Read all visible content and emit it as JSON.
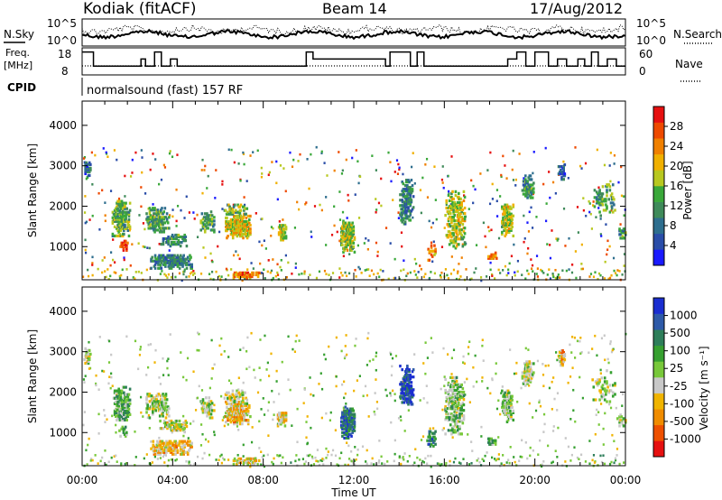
{
  "header": {
    "station": "Kodiak (fitACF)",
    "beam": "Beam 14",
    "date": "17/Aug/2012"
  },
  "top_panels": {
    "nsky_label": "N.Sky",
    "nsearch_label": "N.Search",
    "freq_label_1": "Freq.",
    "freq_label_2": "[MHz]",
    "nave_label": "Nave",
    "cpid_label": "CPID",
    "cpid_text": "normalsound (fast) 157 RF",
    "noise_ticks_left": [
      "10^5",
      "10^0"
    ],
    "noise_ticks_right": [
      "10^5",
      "10^0"
    ],
    "freq_ticks": [
      "18",
      "8"
    ],
    "nave_ticks": [
      "60",
      "0"
    ],
    "freq_steps": [
      {
        "t": 0.0,
        "f": 17
      },
      {
        "t": 0.5,
        "f": 11
      },
      {
        "t": 2.6,
        "f": 14
      },
      {
        "t": 2.8,
        "f": 11
      },
      {
        "t": 3.2,
        "f": 17
      },
      {
        "t": 3.5,
        "f": 11
      },
      {
        "t": 3.9,
        "f": 14
      },
      {
        "t": 4.2,
        "f": 11
      },
      {
        "t": 6.6,
        "f": 11
      },
      {
        "t": 6.7,
        "f": 11
      },
      {
        "t": 8.5,
        "f": 11
      },
      {
        "t": 9.9,
        "f": 17
      },
      {
        "t": 10.2,
        "f": 14
      },
      {
        "t": 12.0,
        "f": 14
      },
      {
        "t": 13.4,
        "f": 11
      },
      {
        "t": 13.6,
        "f": 17
      },
      {
        "t": 14.2,
        "f": 17
      },
      {
        "t": 14.5,
        "f": 11
      },
      {
        "t": 14.8,
        "f": 17
      },
      {
        "t": 15.1,
        "f": 11
      },
      {
        "t": 18.8,
        "f": 14
      },
      {
        "t": 19.2,
        "f": 17
      },
      {
        "t": 19.6,
        "f": 11
      },
      {
        "t": 20.0,
        "f": 17
      },
      {
        "t": 20.6,
        "f": 11
      },
      {
        "t": 21.0,
        "f": 14
      },
      {
        "t": 21.4,
        "f": 11
      },
      {
        "t": 21.9,
        "f": 14
      },
      {
        "t": 22.2,
        "f": 11
      },
      {
        "t": 22.5,
        "f": 17
      },
      {
        "t": 22.8,
        "f": 11
      },
      {
        "t": 23.2,
        "f": 14
      },
      {
        "t": 23.6,
        "f": 11
      },
      {
        "t": 24.0,
        "f": 11
      }
    ]
  },
  "chart_data": {
    "type": "heatmap",
    "x_axis": {
      "label": "Time UT",
      "range": [
        0,
        24
      ],
      "unit": "hours",
      "ticks": [
        "00:00",
        "04:00",
        "08:00",
        "12:00",
        "16:00",
        "20:00",
        "00:00"
      ]
    },
    "panels": [
      {
        "name": "power",
        "ylabel": "Slant Range [km]",
        "ylim": [
          180,
          4600
        ],
        "yticks": [
          1000,
          2000,
          3000,
          4000
        ],
        "colorbar": {
          "label": "Power [dB]",
          "ticks": [
            "28",
            "24",
            "20",
            "16",
            "12",
            "8",
            "4"
          ],
          "colors": [
            "#1a1aff",
            "#2a4da8",
            "#2e6e8e",
            "#3f8a5a",
            "#3aa83a",
            "#b8c820",
            "#f0b000",
            "#f08000",
            "#ee4a00",
            "#e61010"
          ]
        }
      },
      {
        "name": "velocity",
        "ylabel": "Slant Range [km]",
        "ylim": [
          180,
          4600
        ],
        "yticks": [
          1000,
          2000,
          3000,
          4000
        ],
        "colorbar": {
          "label": "Velocity [m s⁻¹]",
          "ticks": [
            "1000",
            "500",
            "100",
            "25",
            "-25",
            "-100",
            "-500",
            "-1000"
          ],
          "colors": [
            "#1a2ed0",
            "#2e5aa8",
            "#2e7e5a",
            "#36a030",
            "#78c83a",
            "#c8c8c8",
            "#f0b400",
            "#f08c00",
            "#ee5000",
            "#e61010"
          ]
        }
      }
    ],
    "scatter_regions": [
      {
        "t0": 0.05,
        "t1": 0.35,
        "r0": 2750,
        "r1": 3150,
        "p": 0.9,
        "pw": 0.25,
        "vel": 0.45
      },
      {
        "t0": 1.3,
        "t1": 2.1,
        "r0": 1300,
        "r1": 2200,
        "p": 0.75,
        "pw": 0.45,
        "vel": 0.62
      },
      {
        "t0": 1.6,
        "t1": 2.0,
        "r0": 900,
        "r1": 1200,
        "p": 0.5,
        "pw": 0.9,
        "vel": 0.55
      },
      {
        "t0": 2.8,
        "t1": 3.8,
        "r0": 1400,
        "r1": 2000,
        "p": 0.6,
        "pw": 0.4,
        "vel": 0.5
      },
      {
        "t0": 3.0,
        "t1": 4.8,
        "r0": 500,
        "r1": 850,
        "p": 0.75,
        "pw": 0.3,
        "vel": 0.35
      },
      {
        "t0": 3.4,
        "t1": 4.6,
        "r0": 1050,
        "r1": 1350,
        "p": 0.6,
        "pw": 0.35,
        "vel": 0.45
      },
      {
        "t0": 5.2,
        "t1": 5.8,
        "r0": 1400,
        "r1": 1900,
        "p": 0.55,
        "pw": 0.4,
        "vel": 0.5
      },
      {
        "t0": 6.3,
        "t1": 7.4,
        "r0": 1250,
        "r1": 1800,
        "p": 0.95,
        "pw": 0.6,
        "vel": 0.35
      },
      {
        "t0": 6.2,
        "t1": 7.3,
        "r0": 1750,
        "r1": 2100,
        "p": 0.5,
        "pw": 0.45,
        "vel": 0.5
      },
      {
        "t0": 6.6,
        "t1": 7.8,
        "r0": 250,
        "r1": 420,
        "p": 0.7,
        "pw": 0.75,
        "vel": 0.4
      },
      {
        "t0": 8.6,
        "t1": 9.0,
        "r0": 1200,
        "r1": 1600,
        "p": 0.85,
        "pw": 0.55,
        "vel": 0.38
      },
      {
        "t0": 11.4,
        "t1": 12.0,
        "r0": 900,
        "r1": 1700,
        "p": 0.9,
        "pw": 0.55,
        "vel": 0.8
      },
      {
        "t0": 14.0,
        "t1": 14.6,
        "r0": 1600,
        "r1": 2700,
        "p": 0.6,
        "pw": 0.3,
        "vel": 0.9
      },
      {
        "t0": 15.2,
        "t1": 15.6,
        "r0": 700,
        "r1": 1100,
        "p": 0.5,
        "pw": 0.7,
        "vel": 0.75
      },
      {
        "t0": 16.0,
        "t1": 16.9,
        "r0": 1000,
        "r1": 2400,
        "p": 0.55,
        "pw": 0.55,
        "vel": 0.55
      },
      {
        "t0": 17.9,
        "t1": 18.3,
        "r0": 700,
        "r1": 900,
        "p": 0.7,
        "pw": 0.7,
        "vel": 0.6
      },
      {
        "t0": 18.5,
        "t1": 19.0,
        "r0": 1300,
        "r1": 2100,
        "p": 0.7,
        "pw": 0.55,
        "vel": 0.55
      },
      {
        "t0": 19.4,
        "t1": 19.9,
        "r0": 2200,
        "r1": 2800,
        "p": 0.6,
        "pw": 0.35,
        "vel": 0.5
      },
      {
        "t0": 21.0,
        "t1": 21.3,
        "r0": 2700,
        "r1": 3100,
        "p": 0.8,
        "pw": 0.2,
        "vel": 0.35
      },
      {
        "t0": 22.5,
        "t1": 23.5,
        "r0": 1800,
        "r1": 2600,
        "p": 0.25,
        "pw": 0.4,
        "vel": 0.5
      },
      {
        "t0": 23.6,
        "t1": 24.0,
        "r0": 1200,
        "r1": 1500,
        "p": 0.5,
        "pw": 0.35,
        "vel": 0.5
      }
    ]
  }
}
